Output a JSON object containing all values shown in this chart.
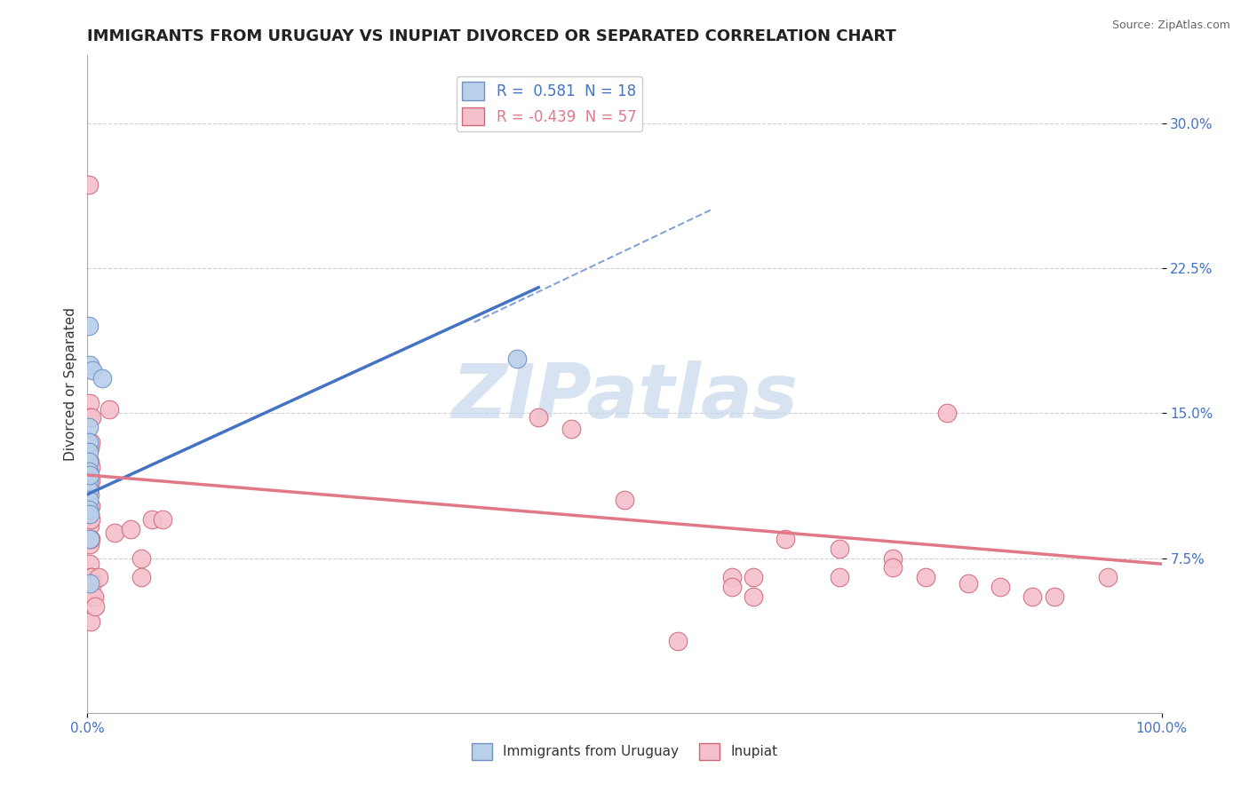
{
  "title": "IMMIGRANTS FROM URUGUAY VS INUPIAT DIVORCED OR SEPARATED CORRELATION CHART",
  "source_text": "Source: ZipAtlas.com",
  "ylabel": "Divorced or Separated",
  "xlim": [
    0.0,
    1.0
  ],
  "ylim": [
    -0.005,
    0.335
  ],
  "x_ticks": [
    0.0,
    1.0
  ],
  "x_tick_labels": [
    "0.0%",
    "100.0%"
  ],
  "y_ticks": [
    0.075,
    0.15,
    0.225,
    0.3
  ],
  "y_tick_labels": [
    "7.5%",
    "15.0%",
    "22.5%",
    "30.0%"
  ],
  "legend_r_entries": [
    {
      "label": "R =  0.581  N = 18"
    },
    {
      "label": "R = -0.439  N = 57"
    }
  ],
  "bottom_legend_labels": [
    "Immigrants from Uruguay",
    "Inupiat"
  ],
  "blue_scatter": [
    [
      0.001,
      0.195
    ],
    [
      0.002,
      0.175
    ],
    [
      0.001,
      0.143
    ],
    [
      0.001,
      0.135
    ],
    [
      0.001,
      0.13
    ],
    [
      0.001,
      0.125
    ],
    [
      0.001,
      0.12
    ],
    [
      0.001,
      0.115
    ],
    [
      0.001,
      0.11
    ],
    [
      0.001,
      0.105
    ],
    [
      0.001,
      0.1
    ],
    [
      0.002,
      0.118
    ],
    [
      0.002,
      0.098
    ],
    [
      0.002,
      0.085
    ],
    [
      0.002,
      0.062
    ],
    [
      0.005,
      0.172
    ],
    [
      0.014,
      0.168
    ],
    [
      0.4,
      0.178
    ]
  ],
  "pink_scatter": [
    [
      0.001,
      0.268
    ],
    [
      0.002,
      0.155
    ],
    [
      0.002,
      0.148
    ],
    [
      0.002,
      0.132
    ],
    [
      0.002,
      0.125
    ],
    [
      0.002,
      0.118
    ],
    [
      0.002,
      0.112
    ],
    [
      0.002,
      0.108
    ],
    [
      0.002,
      0.102
    ],
    [
      0.002,
      0.098
    ],
    [
      0.002,
      0.092
    ],
    [
      0.002,
      0.082
    ],
    [
      0.002,
      0.072
    ],
    [
      0.002,
      0.063
    ],
    [
      0.003,
      0.135
    ],
    [
      0.003,
      0.122
    ],
    [
      0.003,
      0.115
    ],
    [
      0.003,
      0.102
    ],
    [
      0.003,
      0.095
    ],
    [
      0.003,
      0.085
    ],
    [
      0.003,
      0.065
    ],
    [
      0.003,
      0.055
    ],
    [
      0.003,
      0.042
    ],
    [
      0.004,
      0.148
    ],
    [
      0.004,
      0.065
    ],
    [
      0.004,
      0.055
    ],
    [
      0.005,
      0.062
    ],
    [
      0.006,
      0.055
    ],
    [
      0.007,
      0.05
    ],
    [
      0.01,
      0.065
    ],
    [
      0.02,
      0.152
    ],
    [
      0.025,
      0.088
    ],
    [
      0.04,
      0.09
    ],
    [
      0.05,
      0.075
    ],
    [
      0.05,
      0.065
    ],
    [
      0.06,
      0.095
    ],
    [
      0.07,
      0.095
    ],
    [
      0.42,
      0.148
    ],
    [
      0.45,
      0.142
    ],
    [
      0.5,
      0.105
    ],
    [
      0.55,
      0.032
    ],
    [
      0.6,
      0.065
    ],
    [
      0.6,
      0.06
    ],
    [
      0.62,
      0.055
    ],
    [
      0.62,
      0.065
    ],
    [
      0.65,
      0.085
    ],
    [
      0.7,
      0.08
    ],
    [
      0.7,
      0.065
    ],
    [
      0.75,
      0.075
    ],
    [
      0.75,
      0.07
    ],
    [
      0.78,
      0.065
    ],
    [
      0.8,
      0.15
    ],
    [
      0.82,
      0.062
    ],
    [
      0.85,
      0.06
    ],
    [
      0.88,
      0.055
    ],
    [
      0.9,
      0.055
    ],
    [
      0.95,
      0.065
    ]
  ],
  "blue_line": {
    "x0": 0.0,
    "y0": 0.108,
    "x1": 0.42,
    "y1": 0.215
  },
  "blue_dashed_line": {
    "x0": 0.36,
    "y0": 0.197,
    "x1": 0.58,
    "y1": 0.255
  },
  "pink_line": {
    "x0": 0.0,
    "y0": 0.118,
    "x1": 1.0,
    "y1": 0.072
  },
  "blue_color": "#4472c4",
  "blue_scatter_face": "#b8d0ea",
  "blue_scatter_edge": "#7090c0",
  "pink_color": "#e07888",
  "pink_scatter_face": "#f4c0cc",
  "pink_scatter_edge": "#d06878",
  "watermark_text": "ZIPatlas",
  "watermark_color": "#c8d8ec",
  "background_color": "#ffffff",
  "grid_color": "#d0d0d0",
  "title_fontsize": 13,
  "axis_label_fontsize": 11,
  "tick_fontsize": 11,
  "legend_fontsize": 12
}
